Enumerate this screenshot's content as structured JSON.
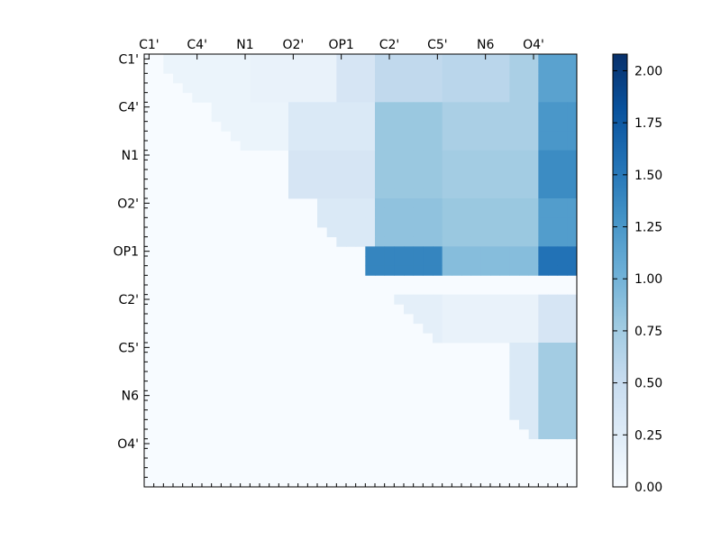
{
  "chart_data": {
    "type": "heatmap",
    "title": "",
    "n_atoms": 45,
    "x_tick_labels": [
      "C1'",
      "C4'",
      "N1",
      "O2'",
      "OP1",
      "C2'",
      "C5'",
      "N6",
      "O4'"
    ],
    "y_tick_labels": [
      "C1'",
      "C4'",
      "N1",
      "O2'",
      "OP1",
      "C2'",
      "C5'",
      "N6",
      "O4'"
    ],
    "x_tick_positions": [
      0,
      5,
      10,
      15,
      20,
      25,
      30,
      35,
      40
    ],
    "y_tick_positions": [
      0,
      5,
      10,
      15,
      20,
      25,
      30,
      35,
      40
    ],
    "x_ticks_position": "top",
    "colormap": "Blues",
    "value_range": [
      0.0,
      2.08
    ],
    "colorbar": {
      "ticks": [
        0.0,
        0.25,
        0.5,
        0.75,
        1.0,
        1.25,
        1.5,
        1.75,
        2.0
      ],
      "tick_labels": [
        "0.00",
        "0.25",
        "0.50",
        "0.75",
        "1.00",
        "1.25",
        "1.50",
        "1.75",
        "2.00"
      ],
      "placement": "right"
    },
    "matrix_note": "upper triangle only; lower triangle is zero",
    "upper_triangle_values": [
      {
        "rows": [
          0,
          4
        ],
        "cols": [
          2,
          10
        ],
        "value": 0.12
      },
      {
        "rows": [
          0,
          4
        ],
        "cols": [
          11,
          19
        ],
        "value": 0.15
      },
      {
        "rows": [
          0,
          4
        ],
        "cols": [
          20,
          23
        ],
        "value": 0.35
      },
      {
        "rows": [
          0,
          4
        ],
        "cols": [
          24,
          30
        ],
        "value": 0.55
      },
      {
        "rows": [
          0,
          4
        ],
        "cols": [
          31,
          37
        ],
        "value": 0.6
      },
      {
        "rows": [
          0,
          4
        ],
        "cols": [
          38,
          40
        ],
        "value": 0.7
      },
      {
        "rows": [
          0,
          4
        ],
        "cols": [
          41,
          44
        ],
        "value": 1.15
      },
      {
        "rows": [
          5,
          9
        ],
        "cols": [
          7,
          14
        ],
        "value": 0.12
      },
      {
        "rows": [
          5,
          9
        ],
        "cols": [
          15,
          23
        ],
        "value": 0.3
      },
      {
        "rows": [
          5,
          9
        ],
        "cols": [
          24,
          30
        ],
        "value": 0.8
      },
      {
        "rows": [
          5,
          9
        ],
        "cols": [
          31,
          40
        ],
        "value": 0.7
      },
      {
        "rows": [
          5,
          9
        ],
        "cols": [
          41,
          44
        ],
        "value": 1.25
      },
      {
        "rows": [
          10,
          14
        ],
        "cols": [
          15,
          23
        ],
        "value": 0.35
      },
      {
        "rows": [
          10,
          14
        ],
        "cols": [
          24,
          30
        ],
        "value": 0.8
      },
      {
        "rows": [
          10,
          14
        ],
        "cols": [
          31,
          40
        ],
        "value": 0.75
      },
      {
        "rows": [
          10,
          14
        ],
        "cols": [
          41,
          44
        ],
        "value": 1.35
      },
      {
        "rows": [
          15,
          19
        ],
        "cols": [
          18,
          23
        ],
        "value": 0.3
      },
      {
        "rows": [
          15,
          19
        ],
        "cols": [
          24,
          30
        ],
        "value": 0.85
      },
      {
        "rows": [
          15,
          19
        ],
        "cols": [
          31,
          40
        ],
        "value": 0.8
      },
      {
        "rows": [
          15,
          19
        ],
        "cols": [
          41,
          44
        ],
        "value": 1.2
      },
      {
        "rows": [
          20,
          22
        ],
        "cols": [
          23,
          30
        ],
        "value": 1.4
      },
      {
        "rows": [
          20,
          22
        ],
        "cols": [
          31,
          40
        ],
        "value": 0.9
      },
      {
        "rows": [
          20,
          22
        ],
        "cols": [
          41,
          44
        ],
        "value": 1.55
      },
      {
        "rows": [
          25,
          29
        ],
        "cols": [
          25,
          30
        ],
        "value": 0.2
      },
      {
        "rows": [
          25,
          29
        ],
        "cols": [
          31,
          40
        ],
        "value": 0.15
      },
      {
        "rows": [
          25,
          29
        ],
        "cols": [
          41,
          44
        ],
        "value": 0.35
      },
      {
        "rows": [
          30,
          39
        ],
        "cols": [
          38,
          40
        ],
        "value": 0.3
      },
      {
        "rows": [
          30,
          39
        ],
        "cols": [
          41,
          44
        ],
        "value": 0.75
      }
    ]
  }
}
